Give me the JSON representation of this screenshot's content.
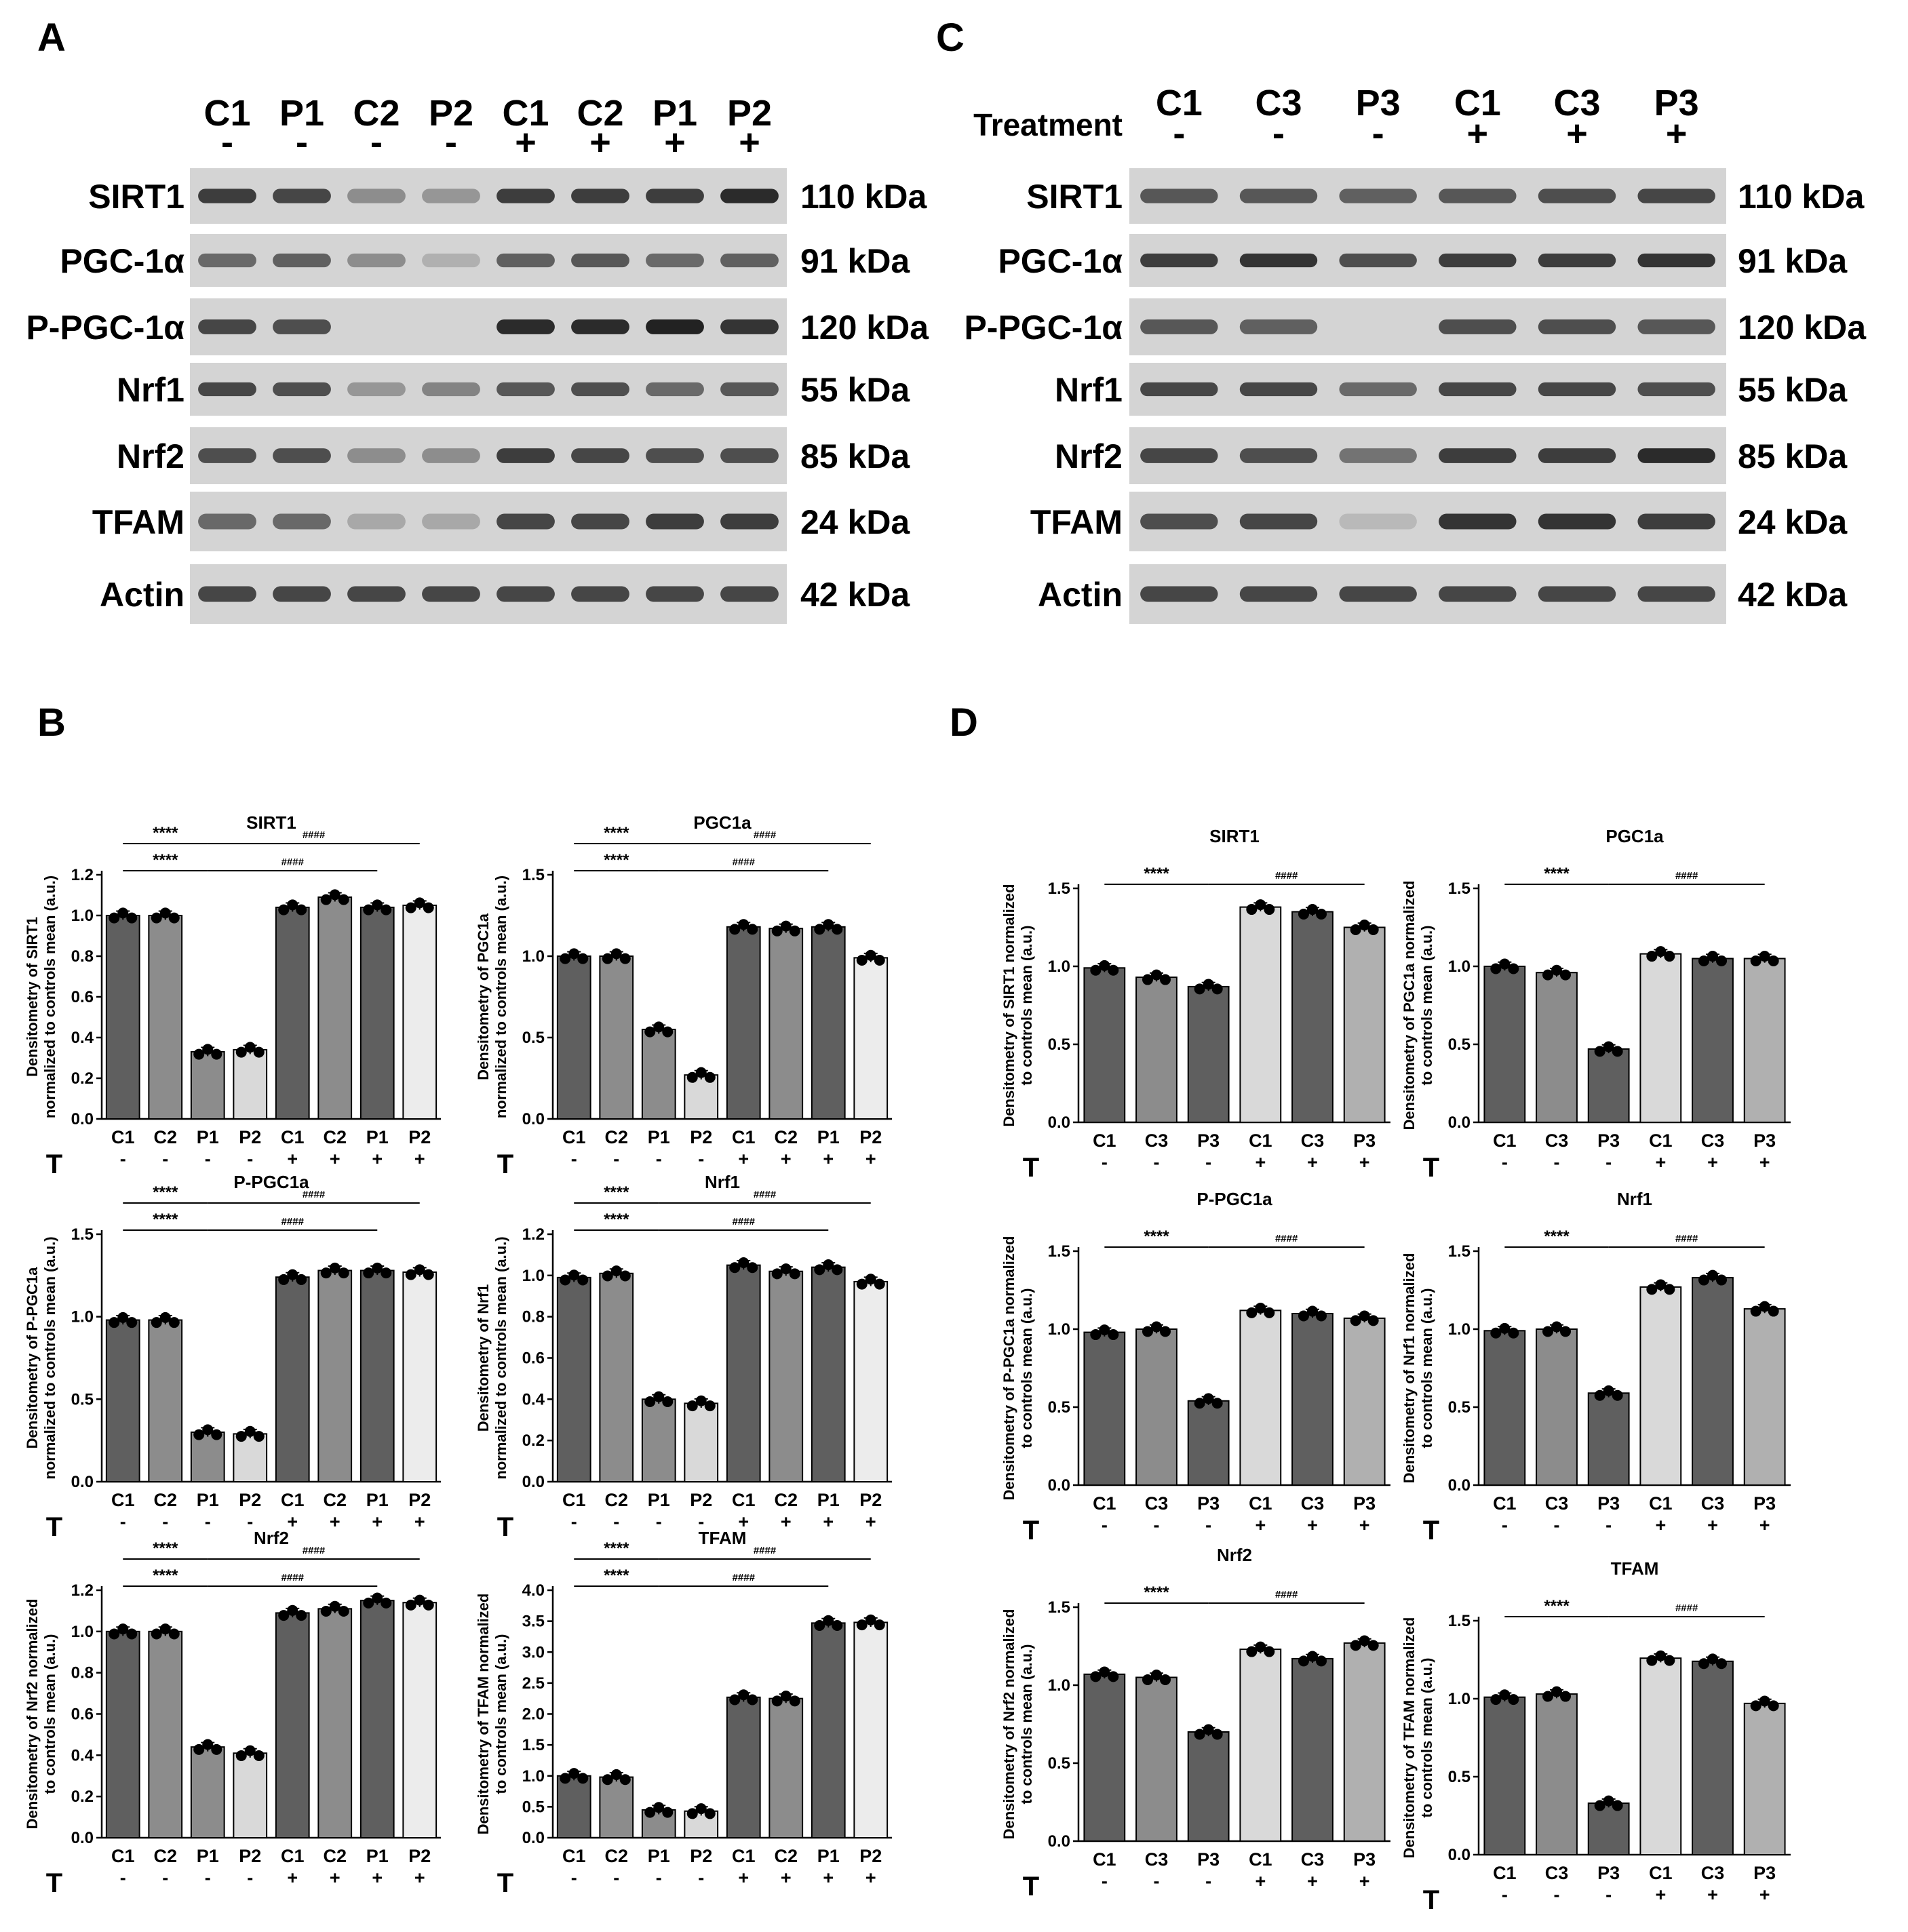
{
  "panel_letters": [
    "A",
    "B",
    "C",
    "D"
  ],
  "colors": {
    "bar_dark": "#5f5f5f",
    "bar_mid": "#8c8c8c",
    "bar_light": "#b0b0b0",
    "bar_pale": "#d9d9d9",
    "bar_white": "#ececec",
    "blot_bg": "#d4d4d4",
    "band": "#222222"
  },
  "blots": [
    {
      "id": "A",
      "treatment_label": "",
      "lanes": [
        "C1",
        "P1",
        "C2",
        "P2",
        "C1",
        "C2",
        "P1",
        "P2"
      ],
      "treatment": [
        "-",
        "-",
        "-",
        "-",
        "+",
        "+",
        "+",
        "+"
      ],
      "rows": [
        {
          "protein": "SIRT1",
          "size": "110 kDa",
          "intensity": [
            0.85,
            0.8,
            0.4,
            0.35,
            0.85,
            0.85,
            0.85,
            0.95
          ]
        },
        {
          "protein": "PGC-1α",
          "size": "91 kDa",
          "intensity": [
            0.6,
            0.65,
            0.4,
            0.2,
            0.65,
            0.7,
            0.6,
            0.65
          ]
        },
        {
          "protein": "P-PGC-1α",
          "size": "120 kDa",
          "intensity": [
            0.8,
            0.75,
            0.0,
            0.0,
            0.95,
            0.95,
            1.0,
            0.9
          ]
        },
        {
          "protein": "Nrf1",
          "size": "55 kDa",
          "intensity": [
            0.8,
            0.75,
            0.35,
            0.45,
            0.7,
            0.75,
            0.6,
            0.7
          ]
        },
        {
          "protein": "Nrf2",
          "size": "85 kDa",
          "intensity": [
            0.75,
            0.75,
            0.4,
            0.4,
            0.85,
            0.8,
            0.75,
            0.75
          ]
        },
        {
          "protein": "TFAM",
          "size": "24 kDa",
          "intensity": [
            0.6,
            0.6,
            0.25,
            0.25,
            0.8,
            0.8,
            0.85,
            0.85
          ]
        },
        {
          "protein": "Actin",
          "size": "42 kDa",
          "intensity": [
            0.8,
            0.8,
            0.8,
            0.8,
            0.8,
            0.8,
            0.8,
            0.8
          ]
        }
      ]
    },
    {
      "id": "C",
      "treatment_label": "Treatment",
      "lanes": [
        "C1",
        "C3",
        "P3",
        "C1",
        "C3",
        "P3"
      ],
      "treatment": [
        "-",
        "-",
        "-",
        "+",
        "+",
        "+"
      ],
      "rows": [
        {
          "protein": "SIRT1",
          "size": "110 kDa",
          "intensity": [
            0.7,
            0.7,
            0.65,
            0.7,
            0.75,
            0.8
          ]
        },
        {
          "protein": "PGC-1α",
          "size": "91 kDa",
          "intensity": [
            0.85,
            0.9,
            0.75,
            0.85,
            0.85,
            0.9
          ]
        },
        {
          "protein": "P-PGC-1α",
          "size": "120 kDa",
          "intensity": [
            0.7,
            0.65,
            0.0,
            0.75,
            0.75,
            0.7
          ]
        },
        {
          "protein": "Nrf1",
          "size": "55 kDa",
          "intensity": [
            0.8,
            0.8,
            0.6,
            0.8,
            0.8,
            0.75
          ]
        },
        {
          "protein": "Nrf2",
          "size": "85 kDa",
          "intensity": [
            0.8,
            0.75,
            0.55,
            0.85,
            0.85,
            0.95
          ]
        },
        {
          "protein": "TFAM",
          "size": "24 kDa",
          "intensity": [
            0.75,
            0.8,
            0.15,
            0.9,
            0.9,
            0.85
          ]
        },
        {
          "protein": "Actin",
          "size": "42 kDa",
          "intensity": [
            0.8,
            0.8,
            0.8,
            0.8,
            0.8,
            0.8
          ]
        }
      ]
    }
  ],
  "chart_data": [
    {
      "type": "bar",
      "panel": "B",
      "title": "SIRT1",
      "ylabel": [
        "Densitometry of SIRT1",
        "normalized to controls mean (a.u.)"
      ],
      "categories": [
        "C1",
        "C2",
        "P1",
        "P2",
        "C1",
        "C2",
        "P1",
        "P2"
      ],
      "treatment": [
        "-",
        "-",
        "-",
        "-",
        "+",
        "+",
        "+",
        "+"
      ],
      "values": [
        1.0,
        1.0,
        0.33,
        0.34,
        1.04,
        1.09,
        1.04,
        1.05
      ],
      "ylim": [
        0,
        1.2
      ],
      "yticks": [
        0.0,
        0.2,
        0.4,
        0.6,
        0.8,
        1.0,
        1.2
      ],
      "shades": [
        "dark",
        "mid",
        "mid",
        "pale",
        "dark",
        "mid",
        "dark",
        "white"
      ],
      "brackets": [
        {
          "label": "****",
          "from": 0,
          "to": 2,
          "level": 1
        },
        {
          "label": "****",
          "from": 0,
          "to": 2,
          "level": 0
        },
        {
          "label": "####",
          "from": 2,
          "to": 6,
          "level": 0
        },
        {
          "label": "####",
          "from": 2,
          "to": 7,
          "level": 1
        }
      ]
    },
    {
      "type": "bar",
      "panel": "B",
      "title": "PGC1a",
      "ylabel": [
        "Densitometry of PGC1a",
        "normalized to controls mean (a.u.)"
      ],
      "categories": [
        "C1",
        "C2",
        "P1",
        "P2",
        "C1",
        "C2",
        "P1",
        "P2"
      ],
      "treatment": [
        "-",
        "-",
        "-",
        "-",
        "+",
        "+",
        "+",
        "+"
      ],
      "values": [
        1.0,
        1.0,
        0.55,
        0.27,
        1.18,
        1.17,
        1.18,
        0.99
      ],
      "ylim": [
        0,
        1.5
      ],
      "yticks": [
        0.0,
        0.5,
        1.0,
        1.5
      ],
      "shades": [
        "dark",
        "mid",
        "mid",
        "pale",
        "dark",
        "mid",
        "dark",
        "white"
      ],
      "brackets": [
        {
          "label": "****",
          "from": 0,
          "to": 2,
          "level": 1
        },
        {
          "label": "****",
          "from": 0,
          "to": 2,
          "level": 0
        },
        {
          "label": "####",
          "from": 2,
          "to": 6,
          "level": 0
        },
        {
          "label": "####",
          "from": 2,
          "to": 7,
          "level": 1
        }
      ]
    },
    {
      "type": "bar",
      "panel": "B",
      "title": "P-PGC1a",
      "ylabel": [
        "Densitometry of P-PGC1a",
        "normalized to controls mean (a.u.)"
      ],
      "categories": [
        "C1",
        "C2",
        "P1",
        "P2",
        "C1",
        "C2",
        "P1",
        "P2"
      ],
      "treatment": [
        "-",
        "-",
        "-",
        "-",
        "+",
        "+",
        "+",
        "+"
      ],
      "values": [
        0.98,
        0.98,
        0.3,
        0.29,
        1.24,
        1.28,
        1.28,
        1.27
      ],
      "ylim": [
        0,
        1.5
      ],
      "yticks": [
        0.0,
        0.5,
        1.0,
        1.5
      ],
      "shades": [
        "dark",
        "mid",
        "mid",
        "pale",
        "dark",
        "mid",
        "dark",
        "white"
      ],
      "brackets": [
        {
          "label": "****",
          "from": 0,
          "to": 2,
          "level": 1
        },
        {
          "label": "****",
          "from": 0,
          "to": 2,
          "level": 0
        },
        {
          "label": "####",
          "from": 2,
          "to": 6,
          "level": 0
        },
        {
          "label": "####",
          "from": 2,
          "to": 7,
          "level": 1
        }
      ]
    },
    {
      "type": "bar",
      "panel": "B",
      "title": "Nrf1",
      "ylabel": [
        "Densitometry of Nrf1",
        "normalized to controls mean (a.u.)"
      ],
      "categories": [
        "C1",
        "C2",
        "P1",
        "P2",
        "C1",
        "C2",
        "P1",
        "P2"
      ],
      "treatment": [
        "-",
        "-",
        "-",
        "-",
        "+",
        "+",
        "+",
        "+"
      ],
      "values": [
        0.99,
        1.01,
        0.4,
        0.38,
        1.05,
        1.02,
        1.04,
        0.97
      ],
      "ylim": [
        0,
        1.2
      ],
      "yticks": [
        0.0,
        0.2,
        0.4,
        0.6,
        0.8,
        1.0,
        1.2
      ],
      "shades": [
        "dark",
        "mid",
        "mid",
        "pale",
        "dark",
        "mid",
        "dark",
        "white"
      ],
      "brackets": [
        {
          "label": "****",
          "from": 0,
          "to": 2,
          "level": 1
        },
        {
          "label": "****",
          "from": 0,
          "to": 2,
          "level": 0
        },
        {
          "label": "####",
          "from": 2,
          "to": 6,
          "level": 0
        },
        {
          "label": "####",
          "from": 2,
          "to": 7,
          "level": 1
        }
      ]
    },
    {
      "type": "bar",
      "panel": "B",
      "title": "Nrf2",
      "ylabel": [
        "Densitometry of Nrf2 normalized",
        "to controls mean (a.u.)"
      ],
      "categories": [
        "C1",
        "C2",
        "P1",
        "P2",
        "C1",
        "C2",
        "P1",
        "P2"
      ],
      "treatment": [
        "-",
        "-",
        "-",
        "-",
        "+",
        "+",
        "+",
        "+"
      ],
      "values": [
        1.0,
        1.0,
        0.44,
        0.41,
        1.09,
        1.11,
        1.15,
        1.14
      ],
      "ylim": [
        0,
        1.2
      ],
      "yticks": [
        0.0,
        0.2,
        0.4,
        0.6,
        0.8,
        1.0,
        1.2
      ],
      "shades": [
        "dark",
        "mid",
        "mid",
        "pale",
        "dark",
        "mid",
        "dark",
        "white"
      ],
      "brackets": [
        {
          "label": "****",
          "from": 0,
          "to": 2,
          "level": 1
        },
        {
          "label": "****",
          "from": 0,
          "to": 2,
          "level": 0
        },
        {
          "label": "####",
          "from": 2,
          "to": 6,
          "level": 0
        },
        {
          "label": "####",
          "from": 2,
          "to": 7,
          "level": 1
        }
      ]
    },
    {
      "type": "bar",
      "panel": "B",
      "title": "TFAM",
      "ylabel": [
        "Densitometry of TFAM normalized",
        "to controls mean (a.u.)"
      ],
      "categories": [
        "C1",
        "C2",
        "P1",
        "P2",
        "C1",
        "C2",
        "P1",
        "P2"
      ],
      "treatment": [
        "-",
        "-",
        "-",
        "-",
        "+",
        "+",
        "+",
        "+"
      ],
      "values": [
        1.0,
        0.98,
        0.45,
        0.43,
        2.27,
        2.25,
        3.47,
        3.48
      ],
      "ylim": [
        0,
        4.0
      ],
      "yticks": [
        0.0,
        0.5,
        1.0,
        1.5,
        2.0,
        2.5,
        3.0,
        3.5,
        4.0
      ],
      "shades": [
        "dark",
        "mid",
        "mid",
        "pale",
        "dark",
        "mid",
        "dark",
        "white"
      ],
      "brackets": [
        {
          "label": "****",
          "from": 0,
          "to": 2,
          "level": 1
        },
        {
          "label": "****",
          "from": 0,
          "to": 2,
          "level": 0
        },
        {
          "label": "####",
          "from": 2,
          "to": 6,
          "level": 0
        },
        {
          "label": "####",
          "from": 2,
          "to": 7,
          "level": 1
        }
      ]
    },
    {
      "type": "bar",
      "panel": "D",
      "title": "SIRT1",
      "ylabel": [
        "Densitometry of SIRT1 normalized",
        "to controls mean (a.u.)"
      ],
      "categories": [
        "C1",
        "C3",
        "P3",
        "C1",
        "C3",
        "P3"
      ],
      "treatment": [
        "-",
        "-",
        "-",
        "+",
        "+",
        "+"
      ],
      "values": [
        0.99,
        0.93,
        0.87,
        1.38,
        1.35,
        1.25
      ],
      "ylim": [
        0,
        1.5
      ],
      "yticks": [
        0.0,
        0.5,
        1.0,
        1.5
      ],
      "shades": [
        "dark",
        "mid",
        "dark",
        "pale",
        "dark",
        "light"
      ],
      "brackets": [
        {
          "label": "****",
          "from": 0,
          "to": 2,
          "level": 0
        },
        {
          "label": "####",
          "from": 2,
          "to": 5,
          "level": 0
        }
      ]
    },
    {
      "type": "bar",
      "panel": "D",
      "title": "PGC1a",
      "ylabel": [
        "Densitometry of PGC1a normalized",
        "to controls mean (a.u.)"
      ],
      "categories": [
        "C1",
        "C3",
        "P3",
        "C1",
        "C3",
        "P3"
      ],
      "treatment": [
        "-",
        "-",
        "-",
        "+",
        "+",
        "+"
      ],
      "values": [
        1.0,
        0.96,
        0.47,
        1.08,
        1.05,
        1.05
      ],
      "ylim": [
        0,
        1.5
      ],
      "yticks": [
        0.0,
        0.5,
        1.0,
        1.5
      ],
      "shades": [
        "dark",
        "mid",
        "dark",
        "pale",
        "dark",
        "light"
      ],
      "brackets": [
        {
          "label": "****",
          "from": 0,
          "to": 2,
          "level": 0
        },
        {
          "label": "####",
          "from": 2,
          "to": 5,
          "level": 0
        }
      ]
    },
    {
      "type": "bar",
      "panel": "D",
      "title": "P-PGC1a",
      "ylabel": [
        "Densitometry of P-PGC1a normalized",
        "to controls mean (a.u.)"
      ],
      "categories": [
        "C1",
        "C3",
        "P3",
        "C1",
        "C3",
        "P3"
      ],
      "treatment": [
        "-",
        "-",
        "-",
        "+",
        "+",
        "+"
      ],
      "values": [
        0.98,
        1.0,
        0.54,
        1.12,
        1.1,
        1.07
      ],
      "ylim": [
        0,
        1.5
      ],
      "yticks": [
        0.0,
        0.5,
        1.0,
        1.5
      ],
      "shades": [
        "dark",
        "mid",
        "dark",
        "pale",
        "dark",
        "light"
      ],
      "brackets": [
        {
          "label": "****",
          "from": 0,
          "to": 2,
          "level": 0
        },
        {
          "label": "####",
          "from": 2,
          "to": 5,
          "level": 0
        }
      ]
    },
    {
      "type": "bar",
      "panel": "D",
      "title": "Nrf1",
      "ylabel": [
        "Densitometry of Nrf1 normalized",
        "to controls mean (a.u.)"
      ],
      "categories": [
        "C1",
        "C3",
        "P3",
        "C1",
        "C3",
        "P3"
      ],
      "treatment": [
        "-",
        "-",
        "-",
        "+",
        "+",
        "+"
      ],
      "values": [
        0.99,
        1.0,
        0.59,
        1.27,
        1.33,
        1.13
      ],
      "ylim": [
        0,
        1.5
      ],
      "yticks": [
        0.0,
        0.5,
        1.0,
        1.5
      ],
      "shades": [
        "dark",
        "mid",
        "dark",
        "pale",
        "dark",
        "light"
      ],
      "brackets": [
        {
          "label": "****",
          "from": 0,
          "to": 2,
          "level": 0
        },
        {
          "label": "####",
          "from": 2,
          "to": 5,
          "level": 0
        }
      ]
    },
    {
      "type": "bar",
      "panel": "D",
      "title": "Nrf2",
      "ylabel": [
        "Densitometry of Nrf2 normalized",
        "to controls mean (a.u.)"
      ],
      "categories": [
        "C1",
        "C3",
        "P3",
        "C1",
        "C3",
        "P3"
      ],
      "treatment": [
        "-",
        "-",
        "-",
        "+",
        "+",
        "+"
      ],
      "values": [
        1.07,
        1.05,
        0.7,
        1.23,
        1.17,
        1.27
      ],
      "ylim": [
        0,
        1.5
      ],
      "yticks": [
        0.0,
        0.5,
        1.0,
        1.5
      ],
      "shades": [
        "dark",
        "mid",
        "dark",
        "pale",
        "dark",
        "light"
      ],
      "brackets": [
        {
          "label": "****",
          "from": 0,
          "to": 2,
          "level": 0
        },
        {
          "label": "####",
          "from": 2,
          "to": 5,
          "level": 0
        }
      ]
    },
    {
      "type": "bar",
      "panel": "D",
      "title": "TFAM",
      "ylabel": [
        "Densitometry of TFAM normalized",
        "to controls mean (a.u.)"
      ],
      "categories": [
        "C1",
        "C3",
        "P3",
        "C1",
        "C3",
        "P3"
      ],
      "treatment": [
        "-",
        "-",
        "-",
        "+",
        "+",
        "+"
      ],
      "values": [
        1.01,
        1.03,
        0.33,
        1.26,
        1.24,
        0.97
      ],
      "ylim": [
        0,
        1.5
      ],
      "yticks": [
        0.0,
        0.5,
        1.0,
        1.5
      ],
      "shades": [
        "dark",
        "mid",
        "dark",
        "pale",
        "dark",
        "light"
      ],
      "brackets": [
        {
          "label": "****",
          "from": 0,
          "to": 2,
          "level": 0
        },
        {
          "label": "####",
          "from": 2,
          "to": 5,
          "level": 0
        }
      ]
    }
  ],
  "treatment_axis_label": "T"
}
